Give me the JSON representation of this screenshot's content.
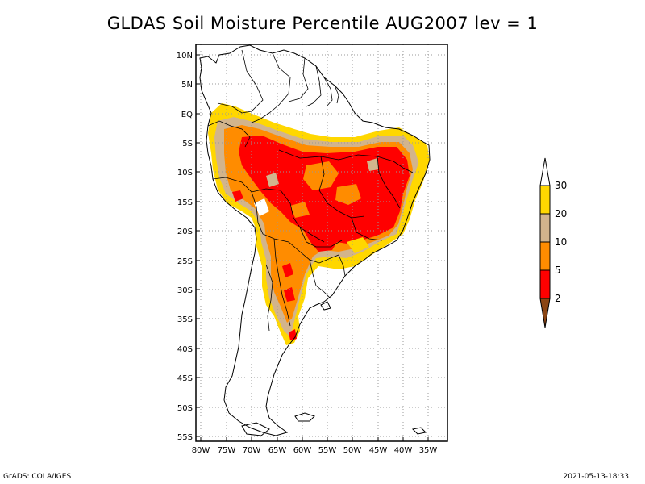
{
  "title": "GLDAS Soil Moisture Percentile AUG2007 lev = 1",
  "map": {
    "lon_range": [
      -80,
      -33
    ],
    "lat_range": [
      -56,
      12
    ],
    "lat_labels": [
      "10N",
      "5N",
      "EQ",
      "5S",
      "10S",
      "15S",
      "20S",
      "25S",
      "30S",
      "35S",
      "40S",
      "45S",
      "50S",
      "55S"
    ],
    "lon_labels": [
      "80W",
      "75W",
      "70W",
      "65W",
      "60W",
      "55W",
      "50W",
      "45W",
      "40W",
      "35W"
    ],
    "grid": "dotted"
  },
  "legend": {
    "labels": [
      "2",
      "5",
      "10",
      "20",
      "30"
    ],
    "colors": [
      "#8b4513",
      "#ff0000",
      "#ff8c00",
      "#d2b48c",
      "#ffd700",
      "#ffffff"
    ]
  },
  "footer": {
    "left": "GrADS: COLA/IGES",
    "right": "2021-05-13-18:33"
  }
}
